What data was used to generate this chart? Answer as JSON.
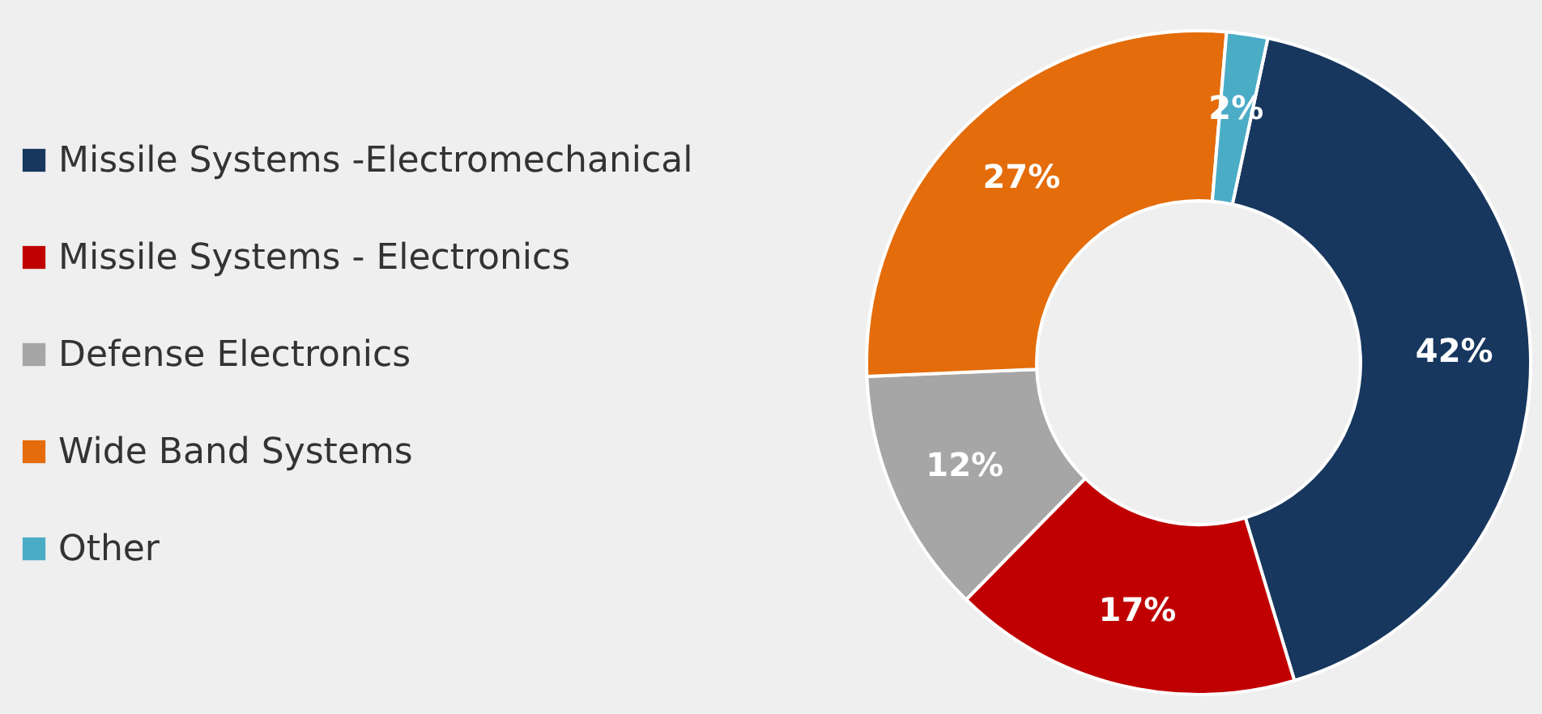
{
  "chart_data": {
    "type": "donut",
    "categories": [
      "Missile Systems -Electromechanical",
      "Missile Systems - Electronics",
      "Defense Electronics",
      "Wide Band Systems",
      "Other"
    ],
    "values": [
      42,
      17,
      12,
      27,
      2
    ],
    "colors": [
      "#17375e",
      "#c00000",
      "#a6a6a6",
      "#e46c0a",
      "#4bacc6"
    ],
    "value_labels": [
      "42%",
      "17%",
      "12%",
      "27%",
      "2%"
    ],
    "legend": "left"
  }
}
